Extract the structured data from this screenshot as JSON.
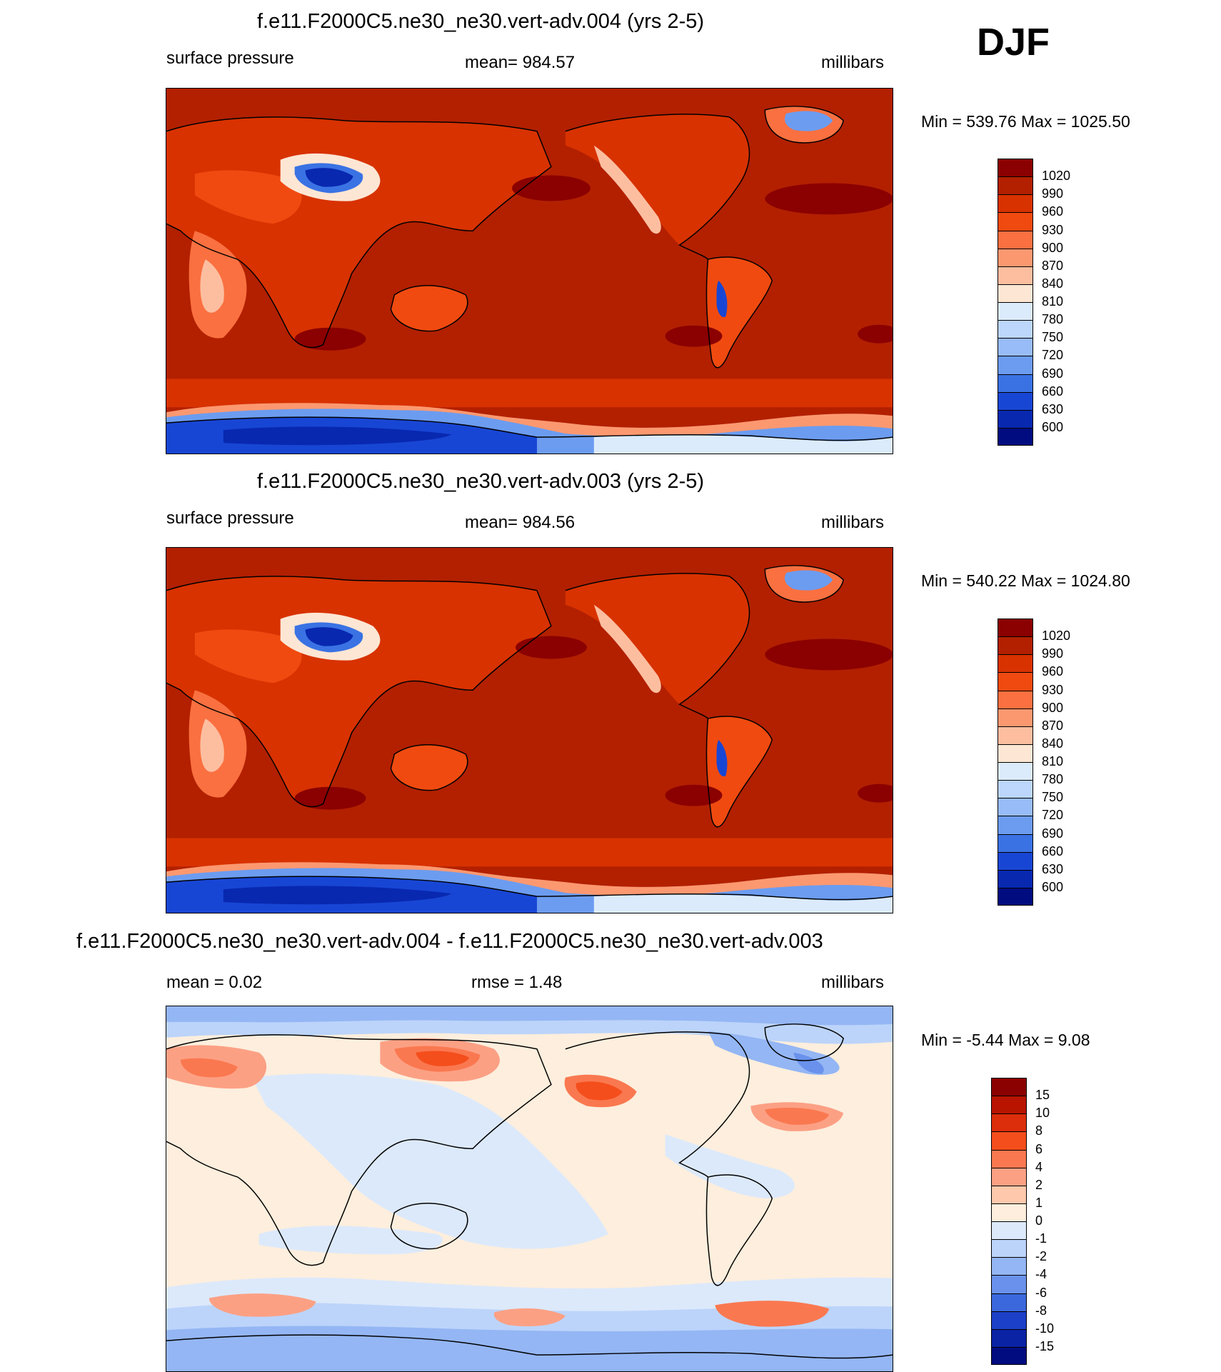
{
  "header": {
    "season": "DJF"
  },
  "panels": [
    {
      "id": "p1",
      "title": "f.e11.F2000C5.ne30_ne30.vert-adv.004 (yrs 2-5)",
      "left_label": "surface pressure",
      "center_label": "mean= 984.57",
      "units": "millibars",
      "minmax": "Min = 539.76 Max = 1025.50",
      "colorbar": {
        "levels": [
          "1020",
          "990",
          "960",
          "930",
          "900",
          "870",
          "840",
          "810",
          "780",
          "750",
          "720",
          "690",
          "660",
          "630",
          "600"
        ],
        "colors": [
          "#8b0000",
          "#b22000",
          "#d83200",
          "#f04a10",
          "#fa7040",
          "#fc9870",
          "#fdbea0",
          "#fde6d4",
          "#dcebfc",
          "#bcd6fc",
          "#98bcf8",
          "#6c9cf0",
          "#3a72e4",
          "#1846d4",
          "#0828b0",
          "#000c80"
        ]
      }
    },
    {
      "id": "p2",
      "title": "f.e11.F2000C5.ne30_ne30.vert-adv.003 (yrs 2-5)",
      "left_label": "surface pressure",
      "center_label": "mean= 984.56",
      "units": "millibars",
      "minmax": "Min = 540.22 Max = 1024.80",
      "colorbar": {
        "levels": [
          "1020",
          "990",
          "960",
          "930",
          "900",
          "870",
          "840",
          "810",
          "780",
          "750",
          "720",
          "690",
          "660",
          "630",
          "600"
        ],
        "colors": [
          "#8b0000",
          "#b22000",
          "#d83200",
          "#f04a10",
          "#fa7040",
          "#fc9870",
          "#fdbea0",
          "#fde6d4",
          "#dcebfc",
          "#bcd6fc",
          "#98bcf8",
          "#6c9cf0",
          "#3a72e4",
          "#1846d4",
          "#0828b0",
          "#000c80"
        ]
      }
    },
    {
      "id": "p3",
      "title": "f.e11.F2000C5.ne30_ne30.vert-adv.004 - f.e11.F2000C5.ne30_ne30.vert-adv.003",
      "left_label": "mean =   0.02",
      "center_label": "rmse =   1.48",
      "units": "millibars",
      "minmax": "Min =  -5.44 Max =   9.08",
      "colorbar": {
        "levels": [
          "15",
          "10",
          "8",
          "6",
          "4",
          "2",
          "1",
          "0",
          "-1",
          "-2",
          "-4",
          "-6",
          "-8",
          "-10",
          "-15"
        ],
        "colors": [
          "#8b0000",
          "#b81400",
          "#dc2e0a",
          "#f44e1c",
          "#fa7850",
          "#fca084",
          "#fdc8ac",
          "#fdeedd",
          "#dce9fb",
          "#bcd4fa",
          "#94b6f4",
          "#6a92ec",
          "#3c68de",
          "#1c40c8",
          "#0a22a4",
          "#000c80"
        ]
      }
    }
  ]
}
